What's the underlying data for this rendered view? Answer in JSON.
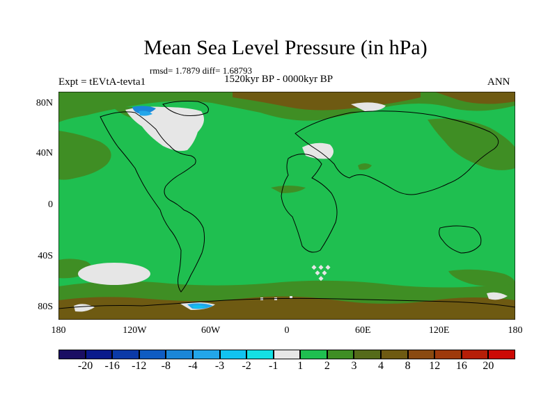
{
  "title": "Mean Sea Level Pressure (in hPa)",
  "stats": "rmsd= 1.7879 diff= 1.68793",
  "left_label": "Expt = tEVtA-tevta1",
  "center_label": "1520kyr BP - 0000kyr BP",
  "right_label": "ANN",
  "y_ticks": [
    "80N",
    "40N",
    "0",
    "40S",
    "80S"
  ],
  "x_ticks": [
    "180",
    "120W",
    "60W",
    "0",
    "60E",
    "120E",
    "180"
  ],
  "colorbar": {
    "colors": [
      "#1a0e63",
      "#0a1a8c",
      "#0b3aa8",
      "#0f5cc2",
      "#1a86d8",
      "#23a6ea",
      "#12c3f0",
      "#14e0e4",
      "#e6e6e6",
      "#1fbf50",
      "#3f8e24",
      "#556b1a",
      "#6e5a12",
      "#8a4a10",
      "#9e3a0c",
      "#b61e08",
      "#cc0a05"
    ],
    "labels": [
      "-20",
      "-16",
      "-12",
      "-8",
      "-4",
      "-3",
      "-2",
      "-1",
      "1",
      "2",
      "3",
      "4",
      "8",
      "12",
      "16",
      "20"
    ]
  },
  "palette": {
    "green": "#1fbf50",
    "olive": "#3f8e24",
    "brown": "#6e5a12",
    "white": "#e6e6e6",
    "blue": "#1a86d8",
    "cyan": "#23a6ea"
  }
}
